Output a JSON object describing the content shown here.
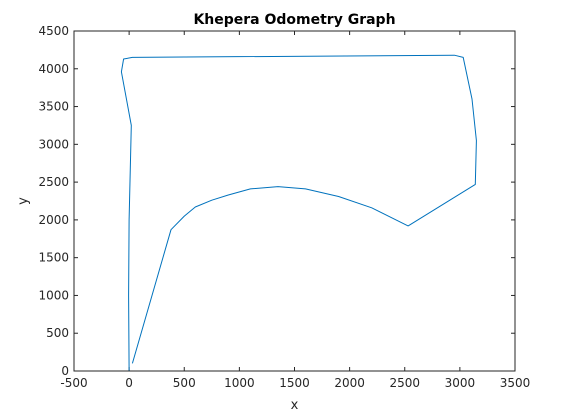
{
  "chart_data": {
    "type": "line",
    "title": "Khepera Odometry Graph",
    "xlabel": "x",
    "ylabel": "y",
    "xlim": [
      -500,
      3500
    ],
    "ylim": [
      0,
      4500
    ],
    "xticks": [
      -500,
      0,
      500,
      1000,
      1500,
      2000,
      2500,
      3000,
      3500
    ],
    "yticks": [
      0,
      500,
      1000,
      1500,
      2000,
      2500,
      3000,
      3500,
      4000,
      4500
    ],
    "grid": false,
    "line_color": "#0072BD",
    "axis_color": "#262626",
    "series": [
      {
        "values": [
          [
            30,
            100
          ],
          [
            380,
            1870
          ],
          [
            500,
            2050
          ],
          [
            600,
            2170
          ],
          [
            750,
            2260
          ],
          [
            900,
            2330
          ],
          [
            1100,
            2410
          ],
          [
            1350,
            2440
          ],
          [
            1600,
            2410
          ],
          [
            1900,
            2310
          ],
          [
            2200,
            2160
          ],
          [
            2530,
            1920
          ],
          [
            3140,
            2470
          ],
          [
            3150,
            3050
          ],
          [
            3110,
            3600
          ],
          [
            3030,
            4150
          ],
          [
            2950,
            4180
          ],
          [
            30,
            4150
          ],
          [
            -50,
            4130
          ],
          [
            -70,
            3960
          ],
          [
            20,
            3250
          ],
          [
            0,
            2000
          ],
          [
            -5,
            1000
          ],
          [
            0,
            0
          ]
        ]
      }
    ]
  }
}
